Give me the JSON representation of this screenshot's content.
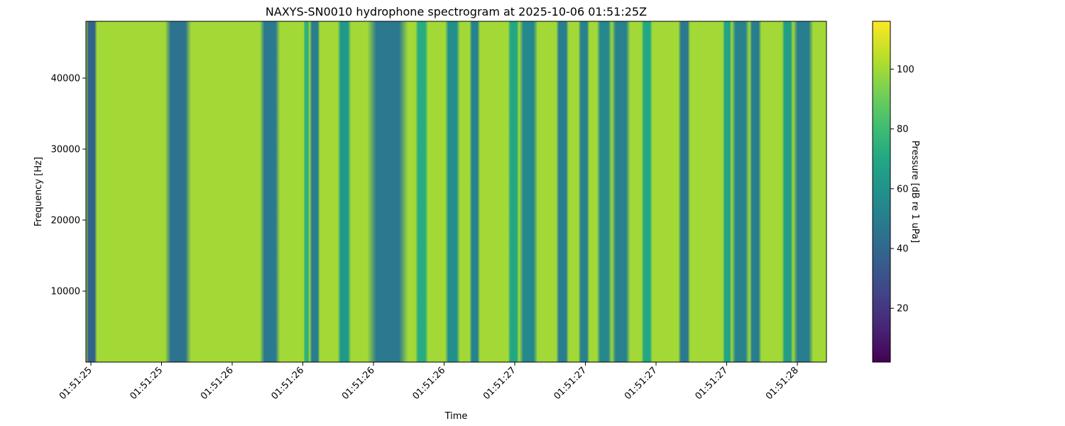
{
  "chart_data": {
    "type": "heatmap",
    "title": "NAXYS-SN0010 hydrophone spectrogram at 2025-10-06 01:51:25Z",
    "xlabel": "Time",
    "ylabel": "Frequency [Hz]",
    "colorbar_label": "Pressure [dB re 1 uPa]",
    "colormap": "viridis",
    "x_tick_labels": [
      "01:51:25",
      "01:51:25",
      "01:51:26",
      "01:51:26",
      "01:51:26",
      "01:51:26",
      "01:51:27",
      "01:51:27",
      "01:51:27",
      "01:51:27",
      "01:51:28"
    ],
    "x_tick_rotation_deg": -45,
    "y_ticks": [
      10000,
      20000,
      30000,
      40000
    ],
    "ylim": [
      0,
      48000
    ],
    "color_ticks": [
      20,
      40,
      60,
      80,
      100
    ],
    "color_range": [
      2,
      116
    ],
    "base_level": 100,
    "dark_bands": [
      {
        "start": 0.0,
        "end": 0.015,
        "level": 38
      },
      {
        "start": 0.107,
        "end": 0.142,
        "level": 45
      },
      {
        "start": 0.235,
        "end": 0.262,
        "level": 48
      },
      {
        "start": 0.294,
        "end": 0.302,
        "level": 75
      },
      {
        "start": 0.302,
        "end": 0.316,
        "level": 50
      },
      {
        "start": 0.34,
        "end": 0.358,
        "level": 63
      },
      {
        "start": 0.38,
        "end": 0.435,
        "level": 48
      },
      {
        "start": 0.445,
        "end": 0.462,
        "level": 72
      },
      {
        "start": 0.485,
        "end": 0.505,
        "level": 58
      },
      {
        "start": 0.518,
        "end": 0.532,
        "level": 52
      },
      {
        "start": 0.57,
        "end": 0.585,
        "level": 70
      },
      {
        "start": 0.585,
        "end": 0.61,
        "level": 55
      },
      {
        "start": 0.635,
        "end": 0.652,
        "level": 50
      },
      {
        "start": 0.665,
        "end": 0.68,
        "level": 52
      },
      {
        "start": 0.69,
        "end": 0.71,
        "level": 55
      },
      {
        "start": 0.71,
        "end": 0.735,
        "level": 52
      },
      {
        "start": 0.75,
        "end": 0.765,
        "level": 70
      },
      {
        "start": 0.8,
        "end": 0.816,
        "level": 48
      },
      {
        "start": 0.86,
        "end": 0.872,
        "level": 68
      },
      {
        "start": 0.872,
        "end": 0.896,
        "level": 52
      },
      {
        "start": 0.896,
        "end": 0.912,
        "level": 50
      },
      {
        "start": 0.94,
        "end": 0.955,
        "level": 65
      },
      {
        "start": 0.955,
        "end": 0.982,
        "level": 50
      }
    ]
  }
}
